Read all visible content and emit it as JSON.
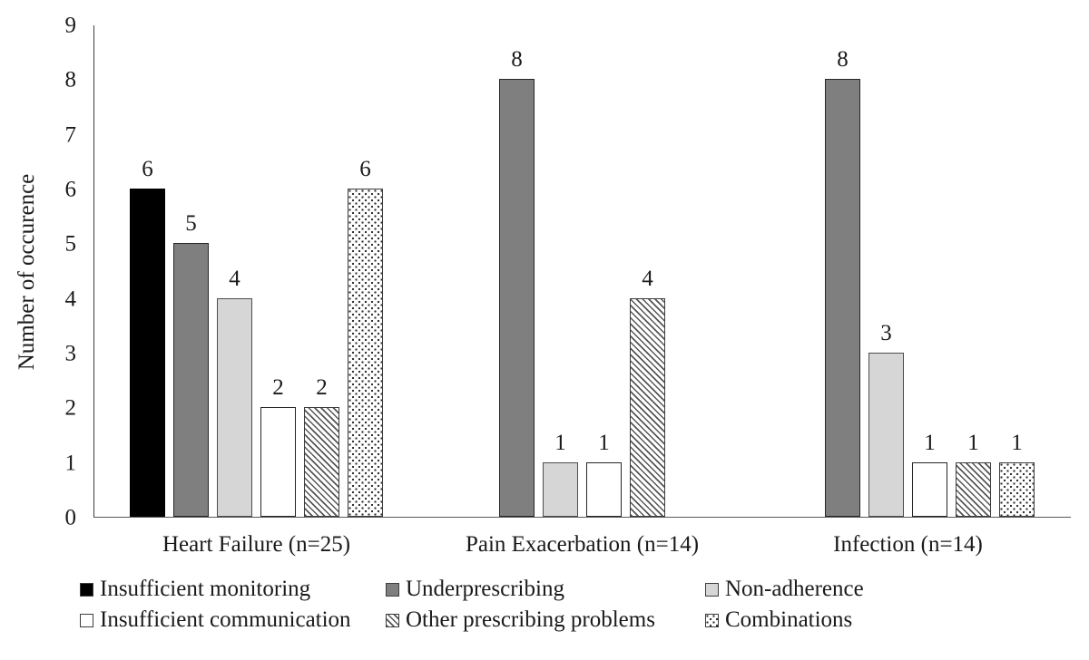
{
  "figure": {
    "background": "#ffffff"
  },
  "colors": {
    "bar_black": "#000000",
    "bar_dark_gray": "#7f7f7f",
    "bar_light_gray": "#d6d6d6",
    "bar_white": "#ffffff",
    "axis": "#3d3d3d",
    "text": "#1a1a1a"
  },
  "chart_data": {
    "type": "bar",
    "title": "",
    "xlabel": "",
    "ylabel": "Number of occurence",
    "ylim": [
      0,
      9
    ],
    "yticks": [
      0,
      1,
      2,
      3,
      4,
      5,
      6,
      7,
      8,
      9
    ],
    "grid": false,
    "bar_value_labels": true,
    "legend_position": "bottom",
    "categories": [
      "Heart Failure (n=25)",
      "Pain Exacerbation (n=14)",
      "Infection (n=14)"
    ],
    "series": [
      {
        "name": "Insufficient monitoring",
        "pattern": "solid-black",
        "values": [
          6,
          0,
          0
        ]
      },
      {
        "name": "Underprescribing",
        "pattern": "solid-darkgray",
        "values": [
          5,
          8,
          8
        ]
      },
      {
        "name": "Non-adherence",
        "pattern": "solid-lightgray",
        "values": [
          4,
          1,
          3
        ]
      },
      {
        "name": "Insufficient communication",
        "pattern": "solid-white",
        "values": [
          2,
          1,
          1
        ]
      },
      {
        "name": "Other prescribing problems",
        "pattern": "diagonal-hatch",
        "values": [
          2,
          4,
          1
        ]
      },
      {
        "name": "Combinations",
        "pattern": "dotted-grid",
        "values": [
          6,
          0,
          1
        ]
      }
    ]
  }
}
